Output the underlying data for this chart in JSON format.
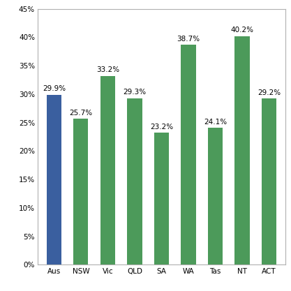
{
  "categories": [
    "Aus",
    "NSW",
    "Vic",
    "QLD",
    "SA",
    "WA",
    "Tas",
    "NT",
    "ACT"
  ],
  "values": [
    29.9,
    25.7,
    33.2,
    29.3,
    23.2,
    38.7,
    24.1,
    40.2,
    29.2
  ],
  "bar_colors": [
    "#3A5F9F",
    "#4C9A5A",
    "#4C9A5A",
    "#4C9A5A",
    "#4C9A5A",
    "#4C9A5A",
    "#4C9A5A",
    "#4C9A5A",
    "#4C9A5A"
  ],
  "ylim": [
    0,
    45
  ],
  "yticks": [
    0,
    5,
    10,
    15,
    20,
    25,
    30,
    35,
    40,
    45
  ],
  "background_color": "#ffffff",
  "plot_bg_color": "#ffffff",
  "spine_color": "#b0b0b0",
  "label_fontsize": 7.5,
  "tick_fontsize": 7.5,
  "bar_label_fontsize": 7.5,
  "bar_width": 0.55
}
